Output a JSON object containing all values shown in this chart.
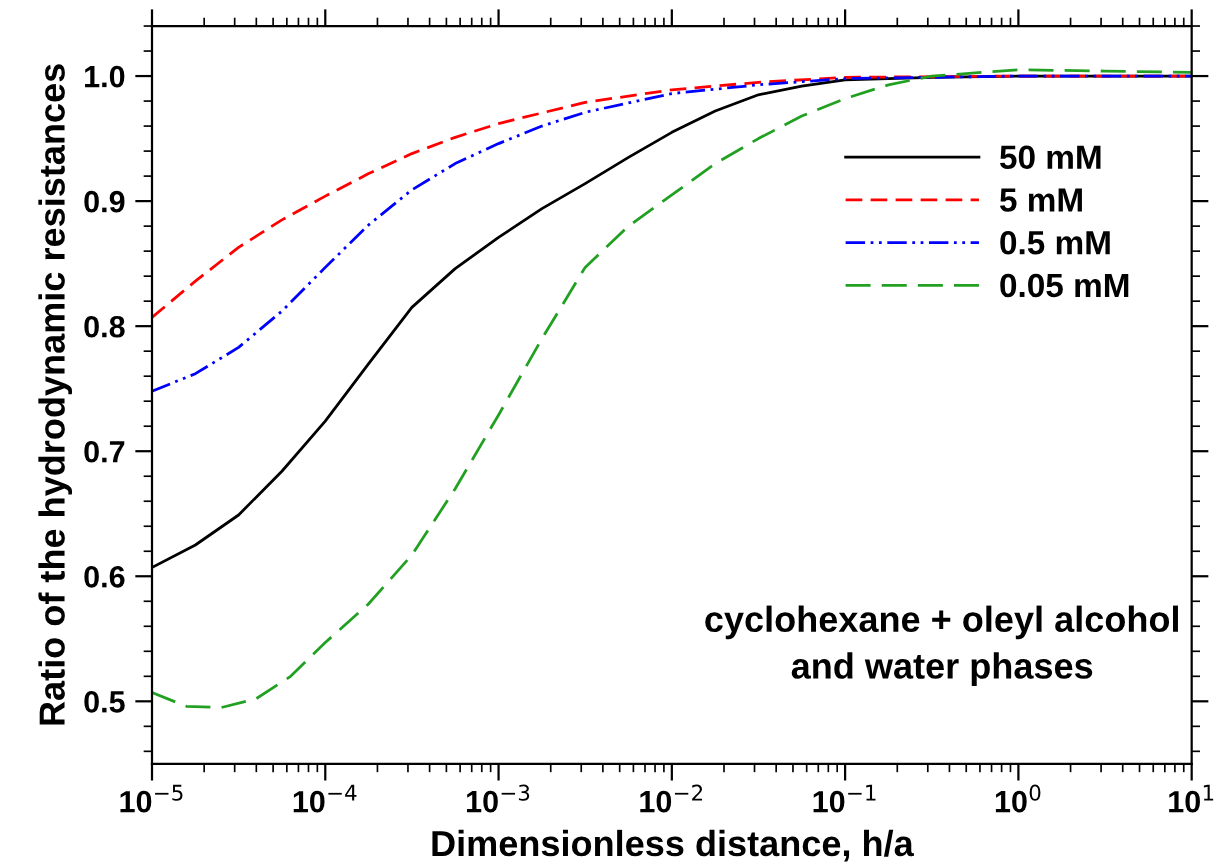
{
  "chart_data": {
    "type": "line",
    "xlabel": "Dimensionless distance, h/a",
    "ylabel": "Ratio of the hydrodynamic resistances",
    "annotations": [
      "cyclohexane + oleyl alcohol\nand water phases"
    ],
    "log": "x",
    "xlim": [
      1e-05,
      10
    ],
    "xticks": [
      {
        "value": 1e-05,
        "label": "10$^{−5}$"
      },
      {
        "value": 0.0001,
        "label": "10$^{−4}$"
      },
      {
        "value": 0.001,
        "label": "10$^{−3}$"
      },
      {
        "value": 0.01,
        "label": "10$^{−2}$"
      },
      {
        "value": 0.1,
        "label": "10$^{−1}$"
      },
      {
        "value": 1,
        "label": "10$^{0}$"
      },
      {
        "value": 10,
        "label": "10$^{1}$"
      }
    ],
    "ylim": [
      0.45,
      1.04
    ],
    "yticks": [
      {
        "value": 0.5,
        "label": "0.5"
      },
      {
        "value": 0.6,
        "label": "0.6"
      },
      {
        "value": 0.7,
        "label": "0.7"
      },
      {
        "value": 0.8,
        "label": "0.8"
      },
      {
        "value": 0.9,
        "label": "0.9"
      },
      {
        "value": 1.0,
        "label": "1.0"
      }
    ],
    "grid": false,
    "legend": "top right",
    "series": [
      {
        "name": "50 mM",
        "color": "#000000",
        "line_style": "solid",
        "x": [
          1e-05,
          1.78e-05,
          3.16e-05,
          5.62e-05,
          0.0001,
          0.000178,
          0.000316,
          0.000562,
          0.001,
          0.00178,
          0.00316,
          0.00562,
          0.01,
          0.0178,
          0.0316,
          0.0562,
          0.1,
          0.316,
          1,
          10
        ],
        "values": [
          0.607,
          0.625,
          0.649,
          0.684,
          0.724,
          0.77,
          0.815,
          0.846,
          0.871,
          0.894,
          0.914,
          0.935,
          0.955,
          0.972,
          0.985,
          0.992,
          0.997,
          0.999,
          1.0,
          1.0
        ]
      },
      {
        "name": "5 mM",
        "color": "#ff0000",
        "line_style": "dashed",
        "x": [
          1e-05,
          1.78e-05,
          3.16e-05,
          5.62e-05,
          0.0001,
          0.000178,
          0.000316,
          0.000562,
          0.001,
          0.00316,
          0.01,
          0.0316,
          0.1,
          1,
          10
        ],
        "values": [
          0.807,
          0.836,
          0.863,
          0.885,
          0.904,
          0.922,
          0.938,
          0.951,
          0.962,
          0.979,
          0.989,
          0.995,
          0.999,
          1.0,
          1.0
        ]
      },
      {
        "name": "0.5 mM",
        "color": "#0000ff",
        "line_style": "dashdotdot",
        "x": [
          1e-05,
          1.78e-05,
          3.16e-05,
          5.62e-05,
          0.0001,
          0.000178,
          0.000316,
          0.000562,
          0.001,
          0.00178,
          0.00316,
          0.01,
          0.0316,
          0.1,
          1,
          10
        ],
        "values": [
          0.748,
          0.762,
          0.783,
          0.812,
          0.847,
          0.881,
          0.909,
          0.93,
          0.946,
          0.96,
          0.971,
          0.986,
          0.993,
          0.998,
          1.0,
          1.0
        ]
      },
      {
        "name": "0.05 mM",
        "color": "#22a022",
        "line_style": "longdashed",
        "x": [
          1e-05,
          1.58e-05,
          2.51e-05,
          3.98e-05,
          6.31e-05,
          0.0001,
          0.000178,
          0.000316,
          0.000562,
          0.001,
          0.00178,
          0.00316,
          0.00562,
          0.01,
          0.0178,
          0.0316,
          0.0562,
          0.1,
          0.178,
          0.316,
          1,
          3.16,
          10
        ],
        "values": [
          0.507,
          0.496,
          0.495,
          0.502,
          0.52,
          0.547,
          0.578,
          0.617,
          0.67,
          0.729,
          0.79,
          0.847,
          0.88,
          0.905,
          0.93,
          0.95,
          0.968,
          0.982,
          0.993,
          1.0,
          1.005,
          1.004,
          1.003
        ]
      }
    ]
  }
}
